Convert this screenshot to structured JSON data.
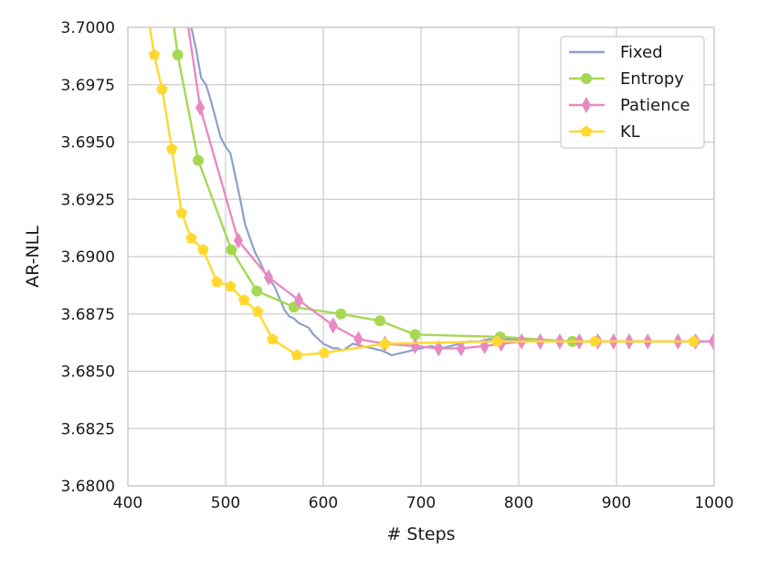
{
  "chart_data": {
    "type": "line",
    "xlabel": "# Steps",
    "ylabel": "AR-NLL",
    "xlim": [
      400,
      1000
    ],
    "ylim": [
      3.68,
      3.7
    ],
    "xticks": [
      400,
      500,
      600,
      700,
      800,
      900,
      1000
    ],
    "yticks": [
      3.68,
      3.6825,
      3.685,
      3.6875,
      3.69,
      3.6925,
      3.695,
      3.6975,
      3.7
    ],
    "xtick_labels": [
      "400",
      "500",
      "600",
      "700",
      "800",
      "900",
      "1000"
    ],
    "ytick_labels": [
      "3.6800",
      "3.6825",
      "3.6850",
      "3.6875",
      "3.6900",
      "3.6925",
      "3.6950",
      "3.6975",
      "3.7000"
    ],
    "grid": true,
    "legend_position": "top-right",
    "series": [
      {
        "name": "Fixed",
        "color": "#8da0cb",
        "marker": "none",
        "x": [
          465,
          470,
          475,
          480,
          485,
          490,
          495,
          500,
          505,
          510,
          515,
          520,
          525,
          530,
          535,
          540,
          545,
          550,
          555,
          560,
          565,
          570,
          575,
          580,
          585,
          590,
          595,
          600,
          605,
          610,
          615,
          620,
          630,
          640,
          650,
          660,
          670,
          680,
          690,
          700,
          710,
          720,
          730,
          740,
          750,
          760,
          770,
          780,
          800,
          820,
          840,
          860,
          880,
          900,
          920,
          940,
          960,
          980,
          1000
        ],
        "y": [
          3.7,
          3.699,
          3.6978,
          3.6975,
          3.6968,
          3.696,
          3.6952,
          3.6948,
          3.6945,
          3.6935,
          3.6925,
          3.6914,
          3.6908,
          3.6902,
          3.6898,
          3.6893,
          3.689,
          3.6887,
          3.6882,
          3.6877,
          3.6874,
          3.6873,
          3.6871,
          3.687,
          3.6869,
          3.6866,
          3.6864,
          3.6862,
          3.6861,
          3.686,
          3.686,
          3.6859,
          3.6862,
          3.6861,
          3.686,
          3.6859,
          3.6857,
          3.6858,
          3.6859,
          3.686,
          3.6861,
          3.686,
          3.6861,
          3.6862,
          3.6863,
          3.6863,
          3.6864,
          3.6864,
          3.6864,
          3.6864,
          3.6863,
          3.6863,
          3.6863,
          3.6863,
          3.6863,
          3.6863,
          3.6863,
          3.6863,
          3.6863
        ]
      },
      {
        "name": "Entropy",
        "color": "#a6d854",
        "marker": "circle",
        "x": [
          441,
          451,
          472,
          506,
          532,
          570,
          618,
          658,
          694,
          781,
          855,
          980
        ],
        "y": [
          3.702,
          3.6988,
          3.6942,
          3.6903,
          3.6885,
          3.6878,
          3.6875,
          3.6872,
          3.6866,
          3.6865,
          3.6863,
          3.6863
        ]
      },
      {
        "name": "Patience",
        "color": "#e78ac3",
        "marker": "diamond",
        "x": [
          455,
          474,
          513,
          544,
          575,
          610,
          636,
          663,
          694,
          718,
          741,
          765,
          782,
          803,
          822,
          842,
          862,
          881,
          897,
          913,
          932,
          963,
          981,
          999
        ],
        "y": [
          3.702,
          3.6965,
          3.6907,
          3.6891,
          3.6881,
          3.687,
          3.6864,
          3.6862,
          3.6861,
          3.686,
          3.686,
          3.6861,
          3.6862,
          3.6863,
          3.6863,
          3.6863,
          3.6863,
          3.6863,
          3.6863,
          3.6863,
          3.6863,
          3.6863,
          3.6863,
          3.6863
        ]
      },
      {
        "name": "KL",
        "color": "#ffd92f",
        "marker": "pentagon",
        "x": [
          415,
          427,
          435,
          445,
          455,
          465,
          477,
          491,
          505,
          519,
          533,
          548,
          573,
          601,
          663,
          778,
          878,
          979
        ],
        "y": [
          3.702,
          3.6988,
          3.6973,
          3.6947,
          3.6919,
          3.6908,
          3.6903,
          3.6889,
          3.6887,
          3.6881,
          3.6876,
          3.6864,
          3.6857,
          3.6858,
          3.6862,
          3.6863,
          3.6863,
          3.6863
        ]
      }
    ]
  }
}
